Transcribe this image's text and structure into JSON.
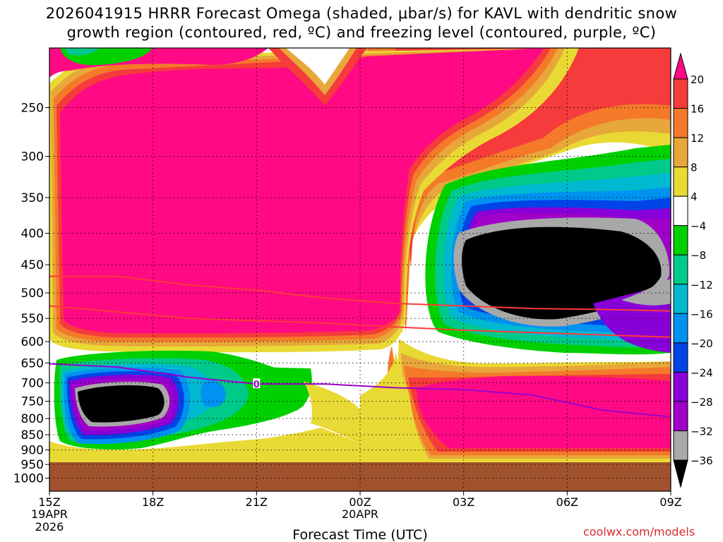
{
  "title": {
    "line1": "2026041915 HRRR Forecast Omega (shaded, μbar/s) for KAVL with dendritic snow",
    "line2": "growth region (contoured, red, ºC) and freezing level (contoured, purple, ºC)"
  },
  "credit": "coolwx.com/models",
  "chart_data": {
    "type": "heatmap",
    "title": "2026041915 HRRR Forecast Omega (shaded, μbar/s) for KAVL with dendritic snow growth region (contoured, red, ºC) and freezing level (contoured, purple, ºC)",
    "xlabel": "Forecast Time (UTC)",
    "ylabel": "",
    "y_scale": "pressure (hPa, decreasing upward)",
    "x_range_hours": [
      0,
      18
    ],
    "y_range_hpa": [
      1050,
      200
    ],
    "x_ticks": [
      {
        "label": "15Z",
        "hour": 0
      },
      {
        "label": "18Z",
        "hour": 3
      },
      {
        "label": "21Z",
        "hour": 6
      },
      {
        "label": "00Z",
        "hour": 9
      },
      {
        "label": "03Z",
        "hour": 12
      },
      {
        "label": "06Z",
        "hour": 15
      },
      {
        "label": "09Z",
        "hour": 18
      }
    ],
    "x_date_labels": [
      {
        "hour": 0,
        "line1": "19APR",
        "line2": "2026"
      },
      {
        "hour": 9,
        "line1": "20APR",
        "line2": ""
      }
    ],
    "y_ticks": [
      250,
      300,
      350,
      400,
      450,
      500,
      550,
      600,
      650,
      700,
      750,
      800,
      850,
      900,
      950,
      1000
    ],
    "colorbar": {
      "labels": [
        "20",
        "16",
        "12",
        "8",
        "4",
        "−4",
        "−8",
        "−12",
        "−16",
        "−20",
        "−24",
        "−28",
        "−32",
        "−36"
      ],
      "colors": [
        "#ff0a84",
        "#f53b3b",
        "#f47a2a",
        "#e8a73a",
        "#e9d934",
        "#ffffff",
        "#00d000",
        "#00ca8a",
        "#00b8d0",
        "#0092f0",
        "#0044e8",
        "#8800d8",
        "#a000c8",
        "#a8a8a8",
        "#000000"
      ]
    },
    "ground_color": "#a0522d",
    "series": [
      {
        "name": "dendritic growth -12ºC",
        "color": "#ff3a3a",
        "x": [
          0,
          2,
          4,
          6,
          8,
          10,
          12,
          14,
          16,
          18
        ],
        "y": [
          470,
          470,
          485,
          495,
          510,
          520,
          525,
          530,
          532,
          535
        ]
      },
      {
        "name": "dendritic growth -18ºC",
        "color": "#ff3a3a",
        "x": [
          0,
          2,
          4,
          6,
          8,
          10,
          12,
          14,
          16,
          18
        ],
        "y": [
          525,
          537,
          550,
          555,
          560,
          568,
          575,
          580,
          585,
          590
        ]
      },
      {
        "name": "freezing level 0ºC",
        "color": "#9900cc",
        "x": [
          0,
          2,
          4,
          6,
          8,
          10,
          12,
          14,
          16,
          18
        ],
        "y": [
          652,
          660,
          685,
          703,
          703,
          713,
          718,
          733,
          775,
          795
        ]
      }
    ],
    "contour_label": "0",
    "features": [
      {
        "name": "strong descent aloft (pink)",
        "value": 20
      },
      {
        "name": "strong ascent mid-level (black)",
        "value": -36
      },
      {
        "name": "strong ascent low-level (black)",
        "value": -36
      }
    ]
  }
}
